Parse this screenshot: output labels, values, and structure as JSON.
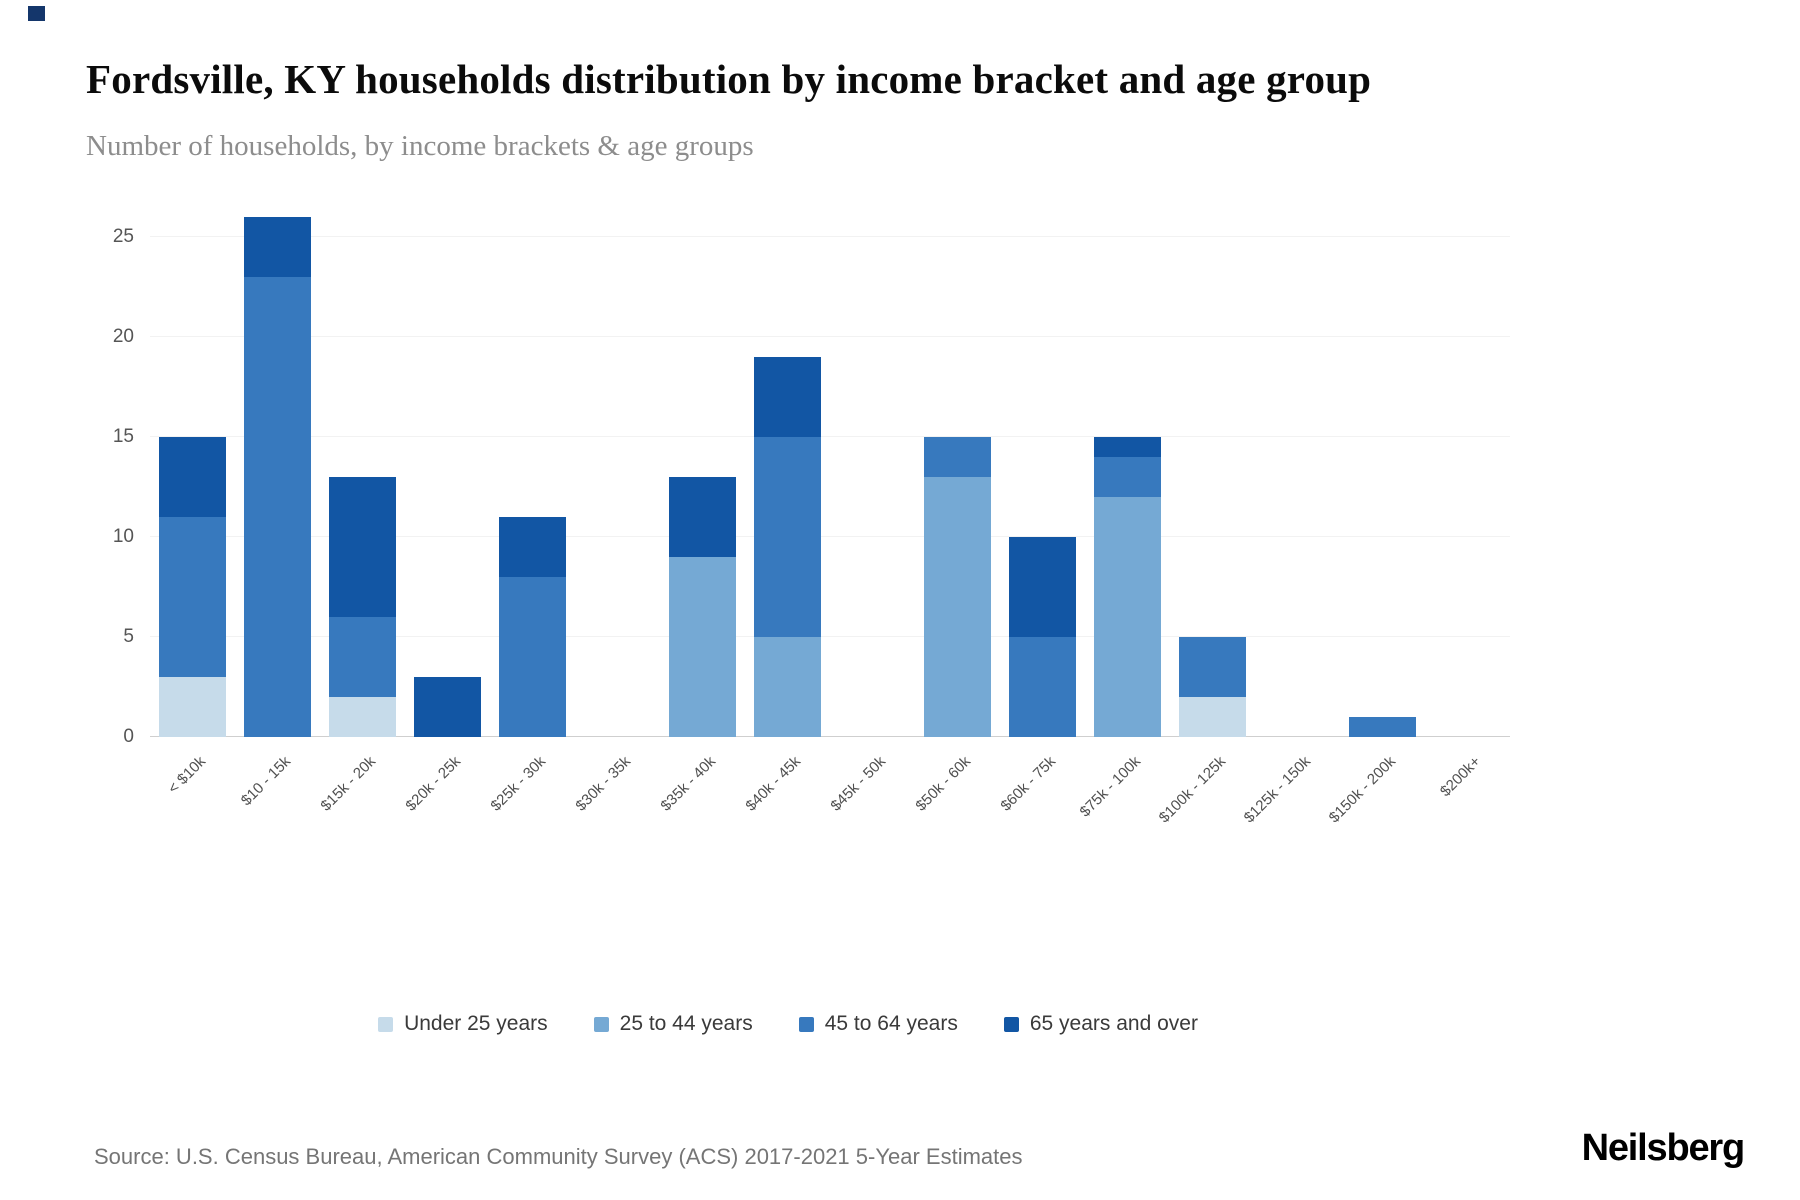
{
  "page": {
    "source": "Source: U.S. Census Bureau, American Community Survey (ACS) 2017-2021 5-Year Estimates",
    "brand": "Neilsberg"
  },
  "colors": {
    "under_25": "#c6dbea",
    "age_25_44": "#75a9d4",
    "age_45_64": "#3779be",
    "age_65_over": "#1256a4",
    "baseline": "#cfcfcf",
    "gridline": "#f2f2f2"
  },
  "chart_data": {
    "type": "bar",
    "stacked": true,
    "title": "Fordsville, KY households distribution by income bracket and age group",
    "subtitle": "Number of households, by income brackets & age groups",
    "xlabel": "",
    "ylabel": "",
    "ylim": [
      0,
      26.5
    ],
    "yticks": [
      0,
      5,
      10,
      15,
      20,
      25
    ],
    "grid": true,
    "legend_position": "bottom",
    "categories": [
      "< $10k",
      "$10 - 15k",
      "$15k - 20k",
      "$20k - 25k",
      "$25k - 30k",
      "$30k - 35k",
      "$35k - 40k",
      "$40k - 45k",
      "$45k - 50k",
      "$50k - 60k",
      "$60k - 75k",
      "$75k - 100k",
      "$100k - 125k",
      "$125k - 150k",
      "$150k - 200k",
      "$200k+"
    ],
    "series": [
      {
        "name": "Under 25 years",
        "color": "#c6dbea",
        "values": [
          3,
          0,
          2,
          0,
          0,
          0,
          0,
          0,
          0,
          0,
          0,
          0,
          2,
          0,
          0,
          0
        ]
      },
      {
        "name": "25 to 44 years",
        "color": "#75a9d4",
        "values": [
          0,
          0,
          0,
          0,
          0,
          0,
          9,
          5,
          0,
          13,
          0,
          12,
          0,
          0,
          0,
          0
        ]
      },
      {
        "name": "45 to 64 years",
        "color": "#3779be",
        "values": [
          8,
          23,
          4,
          0,
          8,
          0,
          0,
          10,
          0,
          2,
          5,
          2,
          3,
          0,
          1,
          0
        ]
      },
      {
        "name": "65 years and over",
        "color": "#1256a4",
        "values": [
          4,
          3,
          7,
          3,
          3,
          0,
          4,
          4,
          0,
          0,
          5,
          1,
          0,
          0,
          0,
          0
        ]
      }
    ],
    "totals": [
      15,
      26,
      13,
      3,
      11,
      0,
      13,
      19,
      0,
      15,
      10,
      15,
      5,
      0,
      1,
      0
    ]
  }
}
